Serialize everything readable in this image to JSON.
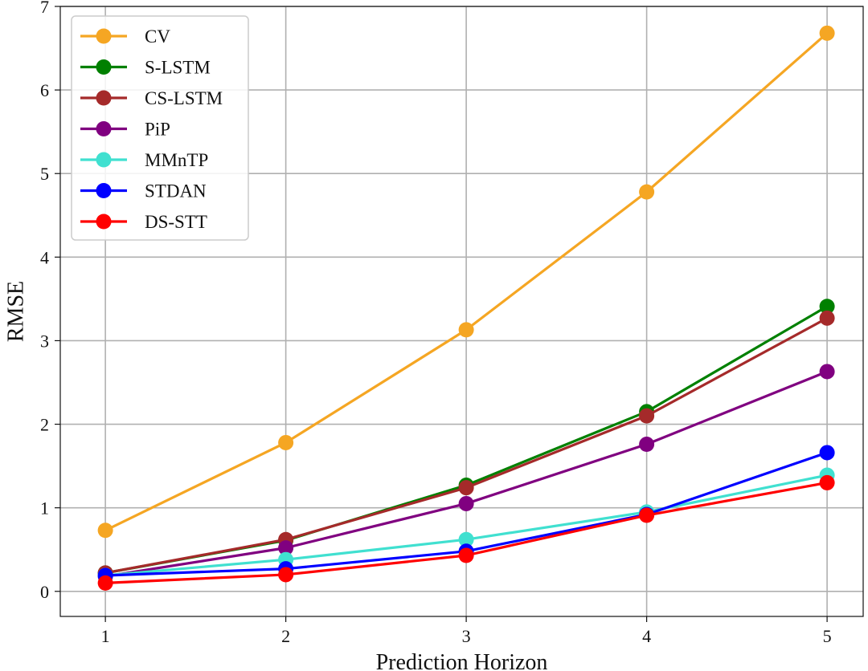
{
  "chart_data": {
    "type": "line",
    "xlabel": "Prediction Horizon",
    "ylabel": "RMSE",
    "x": [
      1,
      2,
      3,
      4,
      5
    ],
    "xticks": [
      "1",
      "2",
      "3",
      "4",
      "5"
    ],
    "xlim": [
      0.75,
      5.2
    ],
    "ylim": [
      -0.3,
      7
    ],
    "yticks": [
      "0",
      "1",
      "2",
      "3",
      "4",
      "5",
      "6",
      "7"
    ],
    "grid": true,
    "legend_position": "top-left",
    "series": [
      {
        "name": "CV",
        "color": "#f5a623",
        "values": [
          0.73,
          1.78,
          3.13,
          4.78,
          6.68
        ]
      },
      {
        "name": "S-LSTM",
        "color": "#008000",
        "values": [
          0.22,
          0.61,
          1.27,
          2.15,
          3.41
        ]
      },
      {
        "name": "CS-LSTM",
        "color": "#a52a2a",
        "values": [
          0.22,
          0.62,
          1.24,
          2.1,
          3.27
        ]
      },
      {
        "name": "PiP",
        "color": "#800080",
        "values": [
          0.18,
          0.52,
          1.05,
          1.76,
          2.63
        ]
      },
      {
        "name": "MMnTP",
        "color": "#40e0d0",
        "values": [
          0.19,
          0.38,
          0.62,
          0.95,
          1.39
        ]
      },
      {
        "name": "STDAN",
        "color": "#0000ff",
        "values": [
          0.19,
          0.27,
          0.48,
          0.92,
          1.66
        ]
      },
      {
        "name": "DS-STT",
        "color": "#ff0000",
        "values": [
          0.1,
          0.2,
          0.43,
          0.91,
          1.3
        ]
      }
    ]
  }
}
